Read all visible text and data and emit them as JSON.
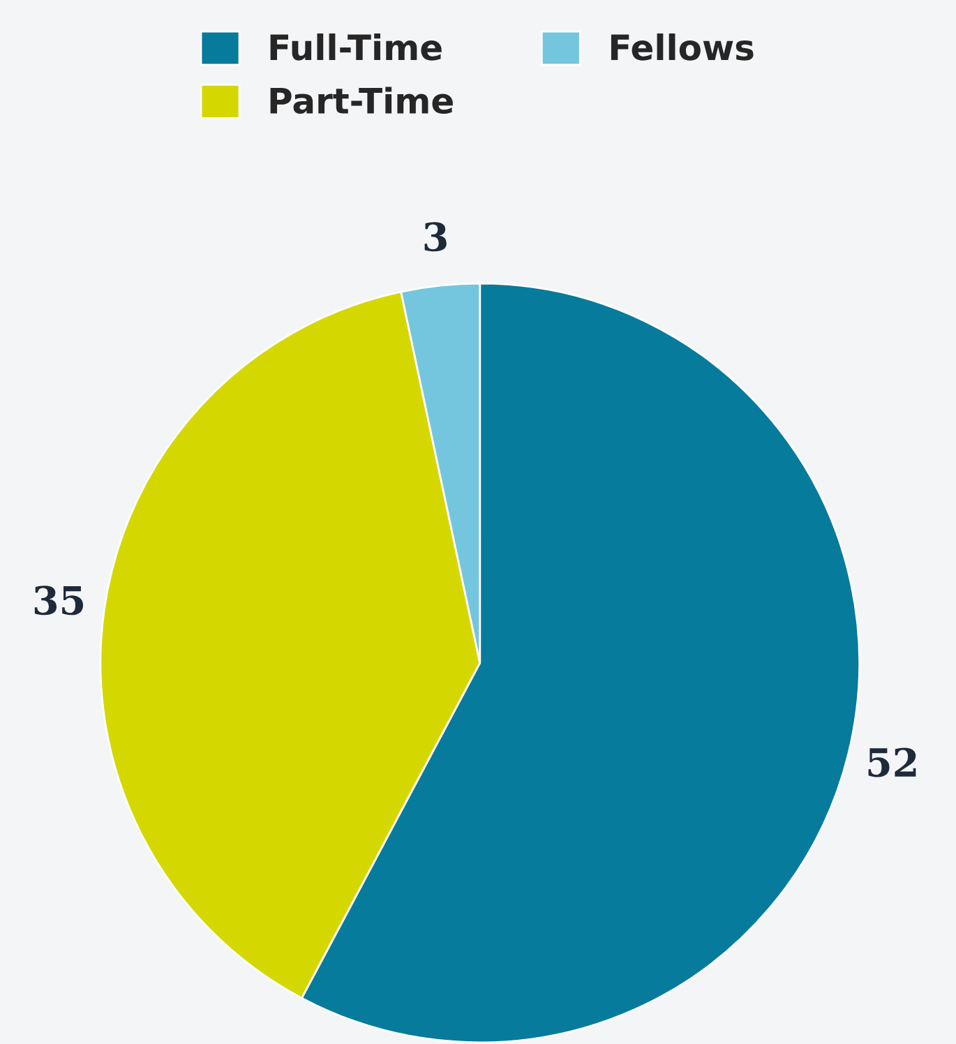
{
  "chart_data": {
    "type": "pie",
    "categories": [
      "Full-Time",
      "Part-Time",
      "Fellows"
    ],
    "values": [
      52,
      35,
      3
    ],
    "colors": [
      "#077b9c",
      "#d5d800",
      "#74c6de"
    ],
    "data_labels": true,
    "legend": "top"
  }
}
